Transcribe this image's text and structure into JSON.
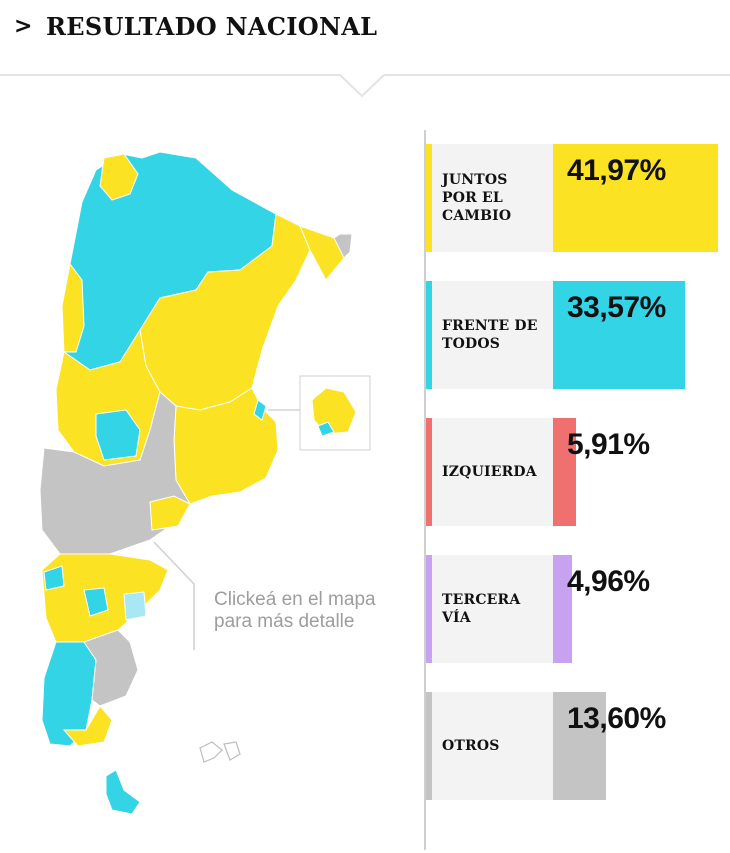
{
  "header": {
    "chevron": ">",
    "title": "RESULTADO NACIONAL"
  },
  "map": {
    "hint_line1": "Clickeá en el mapa",
    "hint_line2": "para más detalle"
  },
  "colors": {
    "juntos": "#fbe223",
    "frente": "#33d4e6",
    "izquierda": "#f07070",
    "tercera": "#c7a2f1",
    "otros": "#c4c4c4",
    "label_bg": "#f3f3f3"
  },
  "chart_data": {
    "type": "bar",
    "orientation": "horizontal",
    "categories": [
      "JUNTOS POR EL CAMBIO",
      "FRENTE DE TODOS",
      "IZQUIERDA",
      "TERCERA VÍA",
      "OTROS"
    ],
    "values": [
      41.97,
      33.57,
      5.91,
      4.96,
      13.6
    ],
    "value_labels": [
      "41,97%",
      "33,57%",
      "5,91%",
      "4,96%",
      "13,60%"
    ],
    "colors": [
      "#fbe223",
      "#33d4e6",
      "#f07070",
      "#c7a2f1",
      "#c4c4c4"
    ],
    "xlim": [
      0,
      41.97
    ]
  }
}
